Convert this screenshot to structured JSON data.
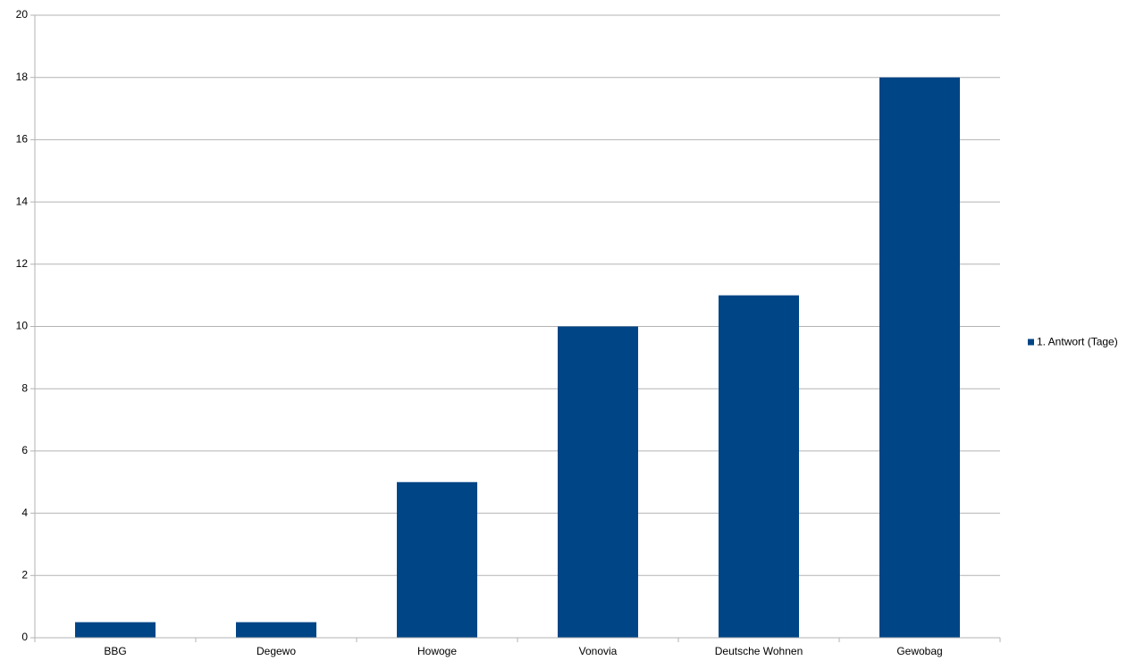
{
  "chart_data": {
    "type": "bar",
    "categories": [
      "BBG",
      "Degewo",
      "Howoge",
      "Vonovia",
      "Deutsche Wohnen",
      "Gewobag"
    ],
    "series": [
      {
        "name": "1. Antwort (Tage)",
        "color": "#004586",
        "values": [
          0.5,
          0.5,
          5,
          10,
          11,
          18
        ]
      }
    ],
    "ylim": [
      0,
      20
    ],
    "yticks": [
      0,
      2,
      4,
      6,
      8,
      10,
      12,
      14,
      16,
      18,
      20
    ],
    "grid": true,
    "legend": "right"
  }
}
